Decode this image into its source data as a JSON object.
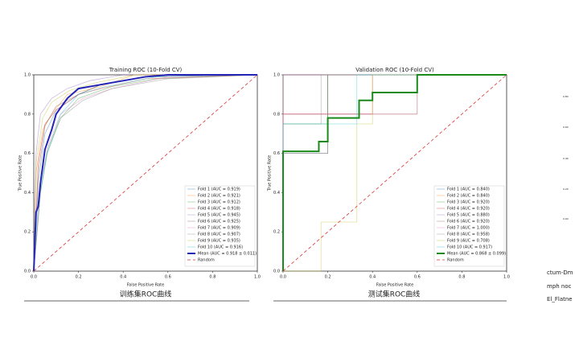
{
  "chart_data": [
    {
      "type": "line",
      "title": "Training ROC (10-Fold CV)",
      "xlabel": "False Positive Rate",
      "ylabel": "True Positive Rate",
      "xlim": [
        0,
        1
      ],
      "ylim": [
        0,
        1
      ],
      "xticks": [
        {
          "value": 0,
          "label": "0.0"
        },
        {
          "value": 0.2,
          "label": "0.2"
        },
        {
          "value": 0.4,
          "label": "0.4"
        },
        {
          "value": 0.6,
          "label": "0.6"
        },
        {
          "value": 0.8,
          "label": "0.8"
        },
        {
          "value": 1,
          "label": "1.0"
        }
      ],
      "yticks": [
        {
          "value": 0,
          "label": "0.0"
        },
        {
          "value": 0.2,
          "label": "0.2"
        },
        {
          "value": 0.4,
          "label": "0.4"
        },
        {
          "value": 0.6,
          "label": "0.6"
        },
        {
          "value": 0.8,
          "label": "0.8"
        },
        {
          "value": 1,
          "label": "1.0"
        }
      ],
      "legend": "lower right",
      "series": [
        {
          "name": "Fold 1 (AUC = 0.919)",
          "color": "#1f77b4",
          "x": [
            0,
            0.02,
            0.05,
            0.1,
            0.2,
            0.3,
            0.5,
            1
          ],
          "values": [
            0,
            0.45,
            0.7,
            0.82,
            0.9,
            0.95,
            0.99,
            1
          ]
        },
        {
          "name": "Fold 2 (AUC = 0.921)",
          "color": "#ff7f0e",
          "x": [
            0,
            0.01,
            0.04,
            0.08,
            0.15,
            0.3,
            0.45,
            1
          ],
          "values": [
            0,
            0.5,
            0.72,
            0.8,
            0.9,
            0.94,
            1,
            1
          ]
        },
        {
          "name": "Fold 3 (AUC = 0.912)",
          "color": "#2ca02c",
          "x": [
            0,
            0.03,
            0.06,
            0.12,
            0.2,
            0.35,
            0.55,
            1
          ],
          "values": [
            0,
            0.4,
            0.6,
            0.78,
            0.88,
            0.94,
            0.98,
            1
          ]
        },
        {
          "name": "Fold 4 (AUC = 0.918)",
          "color": "#d62728",
          "x": [
            0,
            0.02,
            0.05,
            0.1,
            0.2,
            0.3,
            0.5,
            1
          ],
          "values": [
            0,
            0.55,
            0.75,
            0.82,
            0.9,
            0.93,
            0.98,
            1
          ]
        },
        {
          "name": "Fold 5 (AUC = 0.945)",
          "color": "#9467bd",
          "x": [
            0,
            0.01,
            0.03,
            0.08,
            0.15,
            0.25,
            0.4,
            1
          ],
          "values": [
            0,
            0.6,
            0.8,
            0.88,
            0.93,
            0.97,
            1,
            1
          ]
        },
        {
          "name": "Fold 6 (AUC = 0.925)",
          "color": "#8c564b",
          "x": [
            0,
            0.02,
            0.05,
            0.1,
            0.2,
            0.3,
            0.5,
            1
          ],
          "values": [
            0,
            0.5,
            0.74,
            0.84,
            0.9,
            0.95,
            0.99,
            1
          ]
        },
        {
          "name": "Fold 7 (AUC = 0.909)",
          "color": "#e377c2",
          "x": [
            0,
            0.03,
            0.07,
            0.12,
            0.22,
            0.35,
            0.6,
            1
          ],
          "values": [
            0,
            0.45,
            0.66,
            0.8,
            0.88,
            0.93,
            0.99,
            1
          ]
        },
        {
          "name": "Fold 8 (AUC = 0.907)",
          "color": "#7f7f7f",
          "x": [
            0,
            0.03,
            0.06,
            0.12,
            0.22,
            0.35,
            0.6,
            1
          ],
          "values": [
            0,
            0.4,
            0.62,
            0.78,
            0.87,
            0.93,
            0.98,
            1
          ]
        },
        {
          "name": "Fold 9 (AUC = 0.935)",
          "color": "#bcbd22",
          "x": [
            0,
            0.01,
            0.04,
            0.08,
            0.16,
            0.28,
            0.45,
            1
          ],
          "values": [
            0,
            0.55,
            0.78,
            0.86,
            0.92,
            0.96,
            1,
            1
          ]
        },
        {
          "name": "Fold 10 (AUC = 0.916)",
          "color": "#17becf",
          "x": [
            0,
            0.02,
            0.06,
            0.12,
            0.2,
            0.32,
            0.55,
            1
          ],
          "values": [
            0,
            0.35,
            0.6,
            0.8,
            0.9,
            0.94,
            0.99,
            1
          ]
        },
        {
          "name": "Mean (AUC = 0.918 ± 0.011)",
          "color": "#2424b8",
          "width": 2,
          "x": [
            0,
            0.01,
            0.02,
            0.03,
            0.05,
            0.08,
            0.1,
            0.15,
            0.2,
            0.3,
            0.4,
            0.5,
            0.6,
            1
          ],
          "values": [
            0,
            0.3,
            0.33,
            0.45,
            0.62,
            0.72,
            0.8,
            0.88,
            0.93,
            0.95,
            0.97,
            0.99,
            1,
            1
          ]
        },
        {
          "name": "Random",
          "color": "#e03030",
          "linestyle": "dashed",
          "x": [
            0,
            1
          ],
          "values": [
            0,
            1
          ]
        }
      ]
    },
    {
      "type": "line",
      "title": "Validation ROC (10-Fold CV)",
      "xlabel": "False Positive Rate",
      "ylabel": "True Positive Rate",
      "xlim": [
        0,
        1
      ],
      "ylim": [
        0,
        1
      ],
      "xticks": [
        {
          "value": 0,
          "label": "0.0"
        },
        {
          "value": 0.2,
          "label": "0.2"
        },
        {
          "value": 0.4,
          "label": "0.4"
        },
        {
          "value": 0.6,
          "label": "0.6"
        },
        {
          "value": 0.8,
          "label": "0.8"
        },
        {
          "value": 1,
          "label": "1.0"
        }
      ],
      "yticks": [
        {
          "value": 0,
          "label": "0.0"
        },
        {
          "value": 0.2,
          "label": "0.2"
        },
        {
          "value": 0.4,
          "label": "0.4"
        },
        {
          "value": 0.6,
          "label": "0.6"
        },
        {
          "value": 0.8,
          "label": "0.8"
        },
        {
          "value": 1,
          "label": "1.0"
        }
      ],
      "legend": "lower right",
      "series": [
        {
          "name": "Fold 1 (AUC = 0.840)",
          "color": "#1f77b4",
          "x": [
            0,
            0,
            0.2,
            0.2,
            1
          ],
          "values": [
            0,
            0.6,
            0.6,
            1,
            1
          ]
        },
        {
          "name": "Fold 2 (AUC = 0.840)",
          "color": "#ff7f0e",
          "x": [
            0,
            0,
            0.6,
            0.6,
            1
          ],
          "values": [
            0,
            0.8,
            0.8,
            1,
            1
          ]
        },
        {
          "name": "Fold 3 (AUC = 0.920)",
          "color": "#2ca02c",
          "x": [
            0,
            0,
            0.2,
            0.2,
            1
          ],
          "values": [
            0,
            0.75,
            0.75,
            1,
            1
          ]
        },
        {
          "name": "Fold 4 (AUC = 0.920)",
          "color": "#d62728",
          "x": [
            0,
            0,
            0.4,
            0.4,
            1
          ],
          "values": [
            0,
            0.8,
            0.8,
            1,
            1
          ]
        },
        {
          "name": "Fold 5 (AUC = 0.880)",
          "color": "#9467bd",
          "x": [
            0,
            0,
            0.6,
            0.6,
            1
          ],
          "values": [
            0,
            0.8,
            0.8,
            1,
            1
          ]
        },
        {
          "name": "Fold 6 (AUC = 0.920)",
          "color": "#8c564b",
          "x": [
            0,
            0,
            0.2,
            0.2,
            1
          ],
          "values": [
            0,
            0.6,
            0.6,
            1,
            1
          ]
        },
        {
          "name": "Fold 7 (AUC = 1.000)",
          "color": "#e377c2",
          "x": [
            0,
            0,
            1
          ],
          "values": [
            0,
            1,
            1
          ]
        },
        {
          "name": "Fold 8 (AUC = 0.958)",
          "color": "#7f7f7f",
          "x": [
            0,
            0,
            0.17,
            0.17,
            1
          ],
          "values": [
            0,
            0.75,
            0.75,
            1,
            1
          ]
        },
        {
          "name": "Fold 9 (AUC = 0.708)",
          "color": "#bcbd22",
          "x": [
            0,
            0.17,
            0.17,
            0.33,
            0.33,
            0.4,
            0.4,
            1
          ],
          "values": [
            0,
            0,
            0.25,
            0.25,
            0.75,
            0.75,
            1,
            1
          ]
        },
        {
          "name": "Fold 10 (AUC = 0.917)",
          "color": "#17becf",
          "x": [
            0,
            0,
            0.33,
            0.33,
            1
          ],
          "values": [
            0,
            0.75,
            0.75,
            1,
            1
          ]
        },
        {
          "name": "Mean (AUC = 0.868 ± 0.099)",
          "color": "#1a8a1a",
          "width": 2,
          "x": [
            0,
            0,
            0.16,
            0.16,
            0.2,
            0.2,
            0.34,
            0.34,
            0.4,
            0.4,
            0.6,
            0.6,
            1
          ],
          "values": [
            0,
            0.61,
            0.61,
            0.66,
            0.66,
            0.78,
            0.78,
            0.87,
            0.87,
            0.91,
            0.91,
            1,
            1
          ]
        },
        {
          "name": "Random",
          "color": "#e03030",
          "linestyle": "dashed",
          "x": [
            0,
            1
          ],
          "values": [
            0,
            1
          ]
        }
      ]
    }
  ],
  "captions": [
    "训练集ROC曲线",
    "测试集ROC曲线"
  ],
  "fragments": {
    "ticks": [
      "0.80",
      "0.60",
      "0.40",
      "0.20",
      "0.00"
    ],
    "labels": [
      "ctum-Dm",
      "mph noc",
      "El_Flatne"
    ]
  }
}
